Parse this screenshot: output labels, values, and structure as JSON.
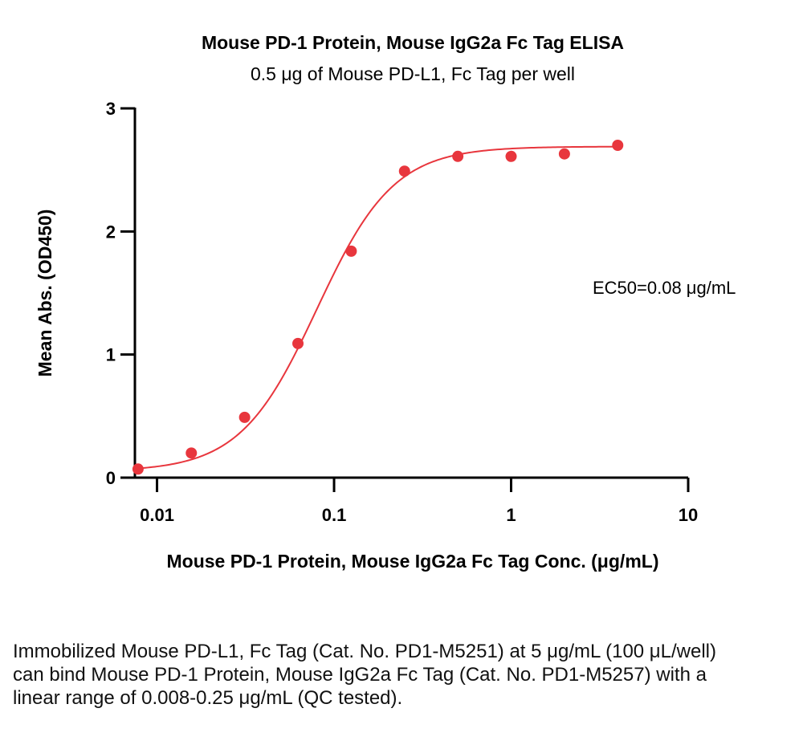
{
  "chart_data": {
    "type": "scatter",
    "title": "Mouse PD-1 Protein, Mouse IgG2a Fc Tag ELISA",
    "subtitle": "0.5 μg of Mouse PD-L1, Fc Tag per well",
    "xlabel": "Mouse PD-1 Protein, Mouse IgG2a Fc Tag Conc. (μg/mL)",
    "ylabel": "Mean Abs. (OD450)",
    "xscale": "log",
    "xlim": [
      0.0075,
      10
    ],
    "ylim": [
      0,
      3
    ],
    "xticks": [
      {
        "value": 0.01,
        "label": "0.01"
      },
      {
        "value": 0.1,
        "label": "0.1"
      },
      {
        "value": 1,
        "label": "1"
      },
      {
        "value": 10,
        "label": "10"
      }
    ],
    "yticks": [
      {
        "value": 0,
        "label": "0"
      },
      {
        "value": 1,
        "label": "1"
      },
      {
        "value": 2,
        "label": "2"
      },
      {
        "value": 3,
        "label": "3"
      }
    ],
    "grid": false,
    "series": [
      {
        "color": "#e8363d",
        "points": [
          {
            "x": 0.0078125,
            "y": 0.07
          },
          {
            "x": 0.015625,
            "y": 0.2
          },
          {
            "x": 0.03125,
            "y": 0.49
          },
          {
            "x": 0.0625,
            "y": 1.09
          },
          {
            "x": 0.125,
            "y": 1.84
          },
          {
            "x": 0.25,
            "y": 2.49
          },
          {
            "x": 0.5,
            "y": 2.61
          },
          {
            "x": 1,
            "y": 2.61
          },
          {
            "x": 2,
            "y": 2.63
          },
          {
            "x": 4,
            "y": 2.7
          }
        ],
        "fit": {
          "model": "4PL",
          "bottom": 0.05,
          "top": 2.69,
          "ec50": 0.08,
          "hill": 2.0
        }
      }
    ],
    "annotation": "EC50=0.08 μg/mL"
  },
  "caption": "Immobilized Mouse PD-L1, Fc Tag (Cat. No. PD1-M5251) at 5 μg/mL (100 μL/well) can bind Mouse PD-1 Protein, Mouse IgG2a Fc Tag (Cat. No. PD1-M5257) with a linear range of 0.008-0.25 μg/mL (QC tested)."
}
